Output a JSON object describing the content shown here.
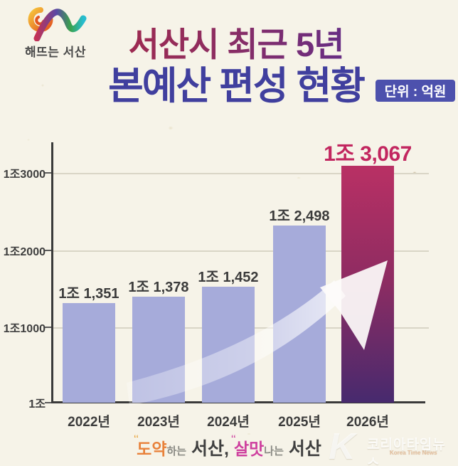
{
  "header": {
    "logo_text": "해뜨는 서산",
    "title_line1": "서산시 최근 5년",
    "title_line2": "본예산 편성 현황",
    "unit_badge": "단위 : 억원"
  },
  "chart_data": {
    "type": "bar",
    "title": "서산시 최근 5년 본예산 편성 현황",
    "unit": "억원",
    "categories": [
      "2022년",
      "2023년",
      "2024년",
      "2025년",
      "2026년"
    ],
    "values": [
      11351,
      11378,
      11452,
      12498,
      13067
    ],
    "value_labels": [
      "1조 1,351",
      "1조 1,378",
      "1조 1,452",
      "1조 2,498",
      "1조 3,067"
    ],
    "y_axis_labels": [
      "1조3000",
      "1조2000",
      "1조1000",
      "1조"
    ],
    "ylim": [
      10000,
      13400
    ],
    "grid": true,
    "legend": "none",
    "highlight_category": "2026년",
    "annotation": "white upward growth arrow across bars",
    "bar_color": "#a6abda",
    "highlight_gradient_top": "#b93064",
    "highlight_gradient_bottom": "#472a6e",
    "highlight_label_color": "#c2265f"
  },
  "footer": {
    "slogan": [
      {
        "text": "도약",
        "style": "accent-orange"
      },
      {
        "text": "하는",
        "style": "small-gray"
      },
      {
        "text": " 서산, ",
        "style": "dark"
      },
      {
        "text": "살맛",
        "style": "accent-pink"
      },
      {
        "text": "나는",
        "style": "small-gray"
      },
      {
        "text": " 서산",
        "style": "dark"
      }
    ],
    "watermark": {
      "initial": "K",
      "name": "코리아타임뉴스",
      "subtitle": "Korea Time News"
    }
  },
  "colors": {
    "background": "#f6f3e8",
    "title1_gradient": [
      "#a2294b",
      "#5e2d8c"
    ],
    "title2": "#403f9e",
    "badge_bg": "#4d51ad",
    "axis": "#3a3a3a",
    "gridline": "#d9d5c6"
  }
}
